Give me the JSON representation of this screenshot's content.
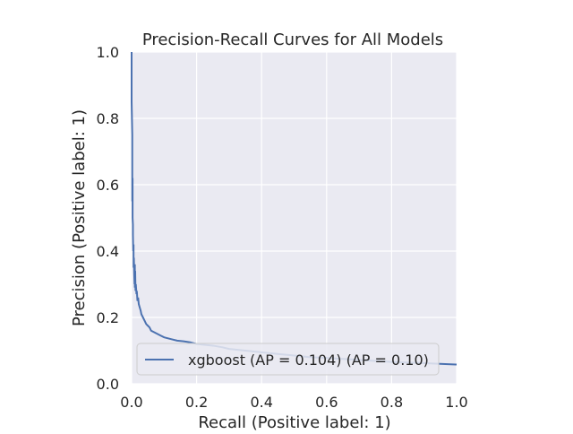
{
  "chart_data": {
    "type": "line",
    "title": "Precision-Recall Curves for All Models",
    "xlabel": "Recall (Positive label: 1)",
    "ylabel": "Precision (Positive label: 1)",
    "xlim": [
      0.0,
      1.0
    ],
    "ylim": [
      0.0,
      1.0
    ],
    "xticks": [
      "0.0",
      "0.2",
      "0.4",
      "0.6",
      "0.8",
      "1.0"
    ],
    "yticks": [
      "0.0",
      "0.2",
      "0.4",
      "0.6",
      "0.8",
      "1.0"
    ],
    "xtick_values": [
      0.0,
      0.2,
      0.4,
      0.6,
      0.8,
      1.0
    ],
    "ytick_values": [
      0.0,
      0.2,
      0.4,
      0.6,
      0.8,
      1.0
    ],
    "grid": true,
    "legend_position": "bottom-right",
    "background_color": "#eaeaf2",
    "grid_color": "#ffffff",
    "series": [
      {
        "name": "xgboost (AP = 0.104) (AP = 0.10)",
        "color": "#4c72b0",
        "x": [
          0.0,
          0.0,
          0.002,
          0.002,
          0.003,
          0.003,
          0.004,
          0.004,
          0.005,
          0.006,
          0.006,
          0.007,
          0.008,
          0.009,
          0.01,
          0.01,
          0.011,
          0.012,
          0.013,
          0.015,
          0.016,
          0.018,
          0.02,
          0.022,
          0.025,
          0.028,
          0.03,
          0.035,
          0.04,
          0.045,
          0.05,
          0.055,
          0.06,
          0.07,
          0.08,
          0.09,
          0.1,
          0.12,
          0.14,
          0.16,
          0.18,
          0.2,
          0.22,
          0.25,
          0.28,
          0.3,
          0.35,
          0.4,
          0.45,
          0.5,
          0.55,
          0.6,
          0.7,
          0.8,
          0.9,
          1.0
        ],
        "y": [
          1.0,
          0.85,
          0.75,
          0.55,
          0.62,
          0.5,
          0.48,
          0.45,
          0.4,
          0.42,
          0.35,
          0.38,
          0.33,
          0.3,
          0.36,
          0.29,
          0.34,
          0.28,
          0.3,
          0.27,
          0.28,
          0.25,
          0.26,
          0.24,
          0.23,
          0.22,
          0.21,
          0.2,
          0.19,
          0.18,
          0.175,
          0.17,
          0.16,
          0.155,
          0.15,
          0.145,
          0.14,
          0.135,
          0.13,
          0.128,
          0.125,
          0.12,
          0.118,
          0.115,
          0.11,
          0.105,
          0.1,
          0.095,
          0.09,
          0.085,
          0.08,
          0.078,
          0.072,
          0.066,
          0.062,
          0.058
        ]
      }
    ]
  }
}
